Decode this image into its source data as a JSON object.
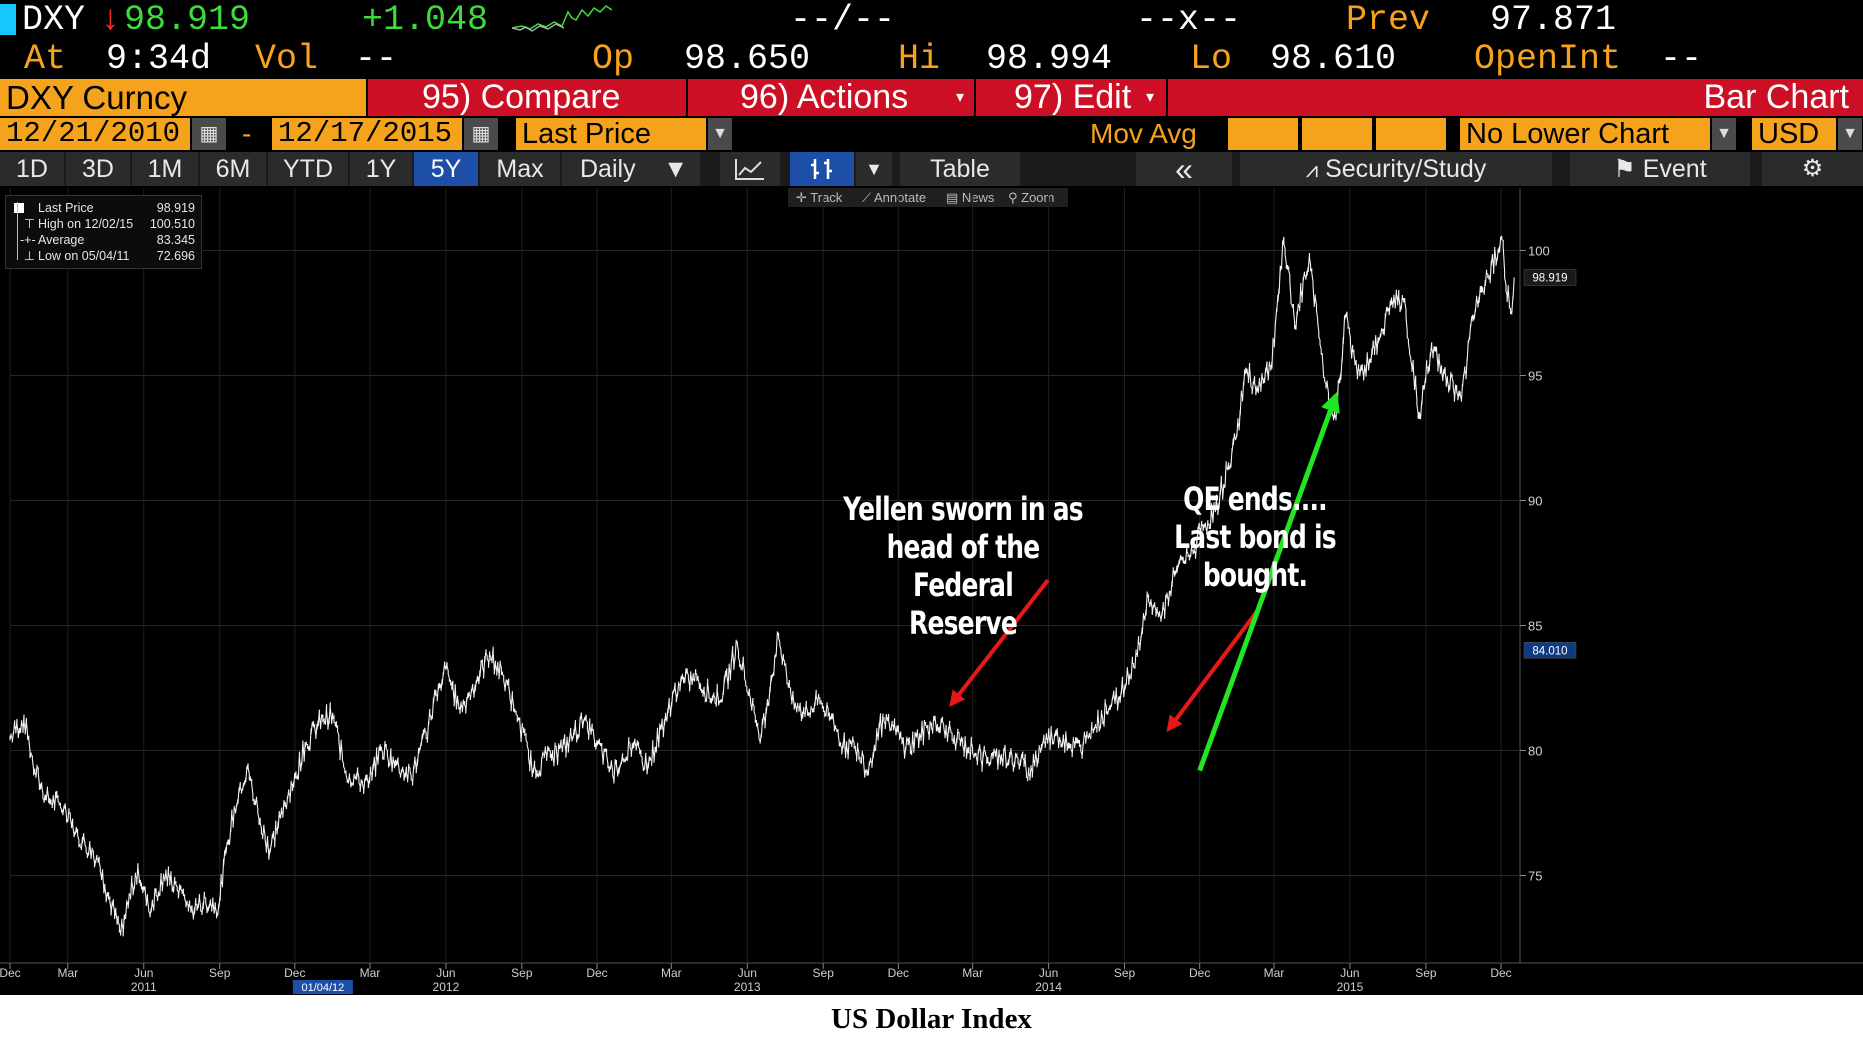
{
  "header": {
    "ticker": "DXY",
    "last_price": "98.919",
    "change": "+1.048",
    "bid_ask": "--/--",
    "size": "--x--",
    "prev_label": "Prev",
    "prev_value": "97.871",
    "at_label": "At",
    "at_time": "9:34d",
    "vol_label": "Vol",
    "vol_value": "--",
    "op_label": "Op",
    "op_value": "98.650",
    "hi_label": "Hi",
    "hi_value": "98.994",
    "lo_label": "Lo",
    "lo_value": "98.610",
    "openint_label": "OpenInt",
    "openint_value": "--"
  },
  "menubar": {
    "security": "DXY Curncy",
    "compare": "95) Compare",
    "actions": "96) Actions",
    "edit": "97) Edit",
    "chart_type": "Bar Chart"
  },
  "controls": {
    "start_date": "12/21/2010",
    "end_date": "12/17/2015",
    "field": "Last Price",
    "mov_avg": "Mov Avg",
    "lower_chart": "No Lower Chart",
    "currency": "USD",
    "dash": "-"
  },
  "tabs": {
    "periods": [
      "1D",
      "3D",
      "1M",
      "6M",
      "YTD",
      "1Y",
      "5Y",
      "Max"
    ],
    "active": "5Y",
    "frequency": "Daily",
    "table": "Table",
    "collapse": "«",
    "security_study": "Security/Study",
    "event": "Event"
  },
  "tools": {
    "track": "Track",
    "annotate": "Annotate",
    "news": "News",
    "zoom": "Zoom"
  },
  "legend": {
    "last_label": "Last Price",
    "last_value": "98.919",
    "high_label": "High on 12/02/15",
    "high_value": "100.510",
    "avg_label": "Average",
    "avg_value": "83.345",
    "low_label": "Low on 05/04/11",
    "low_value": "72.696"
  },
  "annotations": {
    "yellen": [
      "Yellen sworn in as",
      "head of the Federal",
      "Reserve"
    ],
    "qe": [
      "QE ends....",
      "Last bond is",
      "bought."
    ]
  },
  "caption": "US Dollar Index",
  "colors": {
    "background": "#000000",
    "line": "#ffffff",
    "orange": "#f5a31c",
    "menu_red": "#cc0f24",
    "up_green": "#3ddc3d",
    "down_red": "#ff2b2b",
    "arrow_red": "#e81818",
    "arrow_green": "#22e622",
    "tag_blue": "#1d4fa8"
  },
  "chart_data": {
    "type": "line",
    "title": "US Dollar Index",
    "xlabel": "",
    "ylabel": "",
    "ylim": [
      71.5,
      102.5
    ],
    "y_ticks": [
      75,
      80,
      85,
      90,
      95,
      100
    ],
    "x_ticks": [
      {
        "label": "Dec",
        "year": "",
        "date": "2010-12-21"
      },
      {
        "label": "Mar",
        "year": "",
        "date": "2011-03-01"
      },
      {
        "label": "Jun",
        "year": "2011",
        "date": "2011-06-01"
      },
      {
        "label": "Sep",
        "year": "",
        "date": "2011-09-01"
      },
      {
        "label": "Dec",
        "year": "",
        "date": "2011-12-01"
      },
      {
        "label": "Mar",
        "year": "",
        "date": "2012-03-01"
      },
      {
        "label": "Jun",
        "year": "2012",
        "date": "2012-06-01"
      },
      {
        "label": "Sep",
        "year": "",
        "date": "2012-09-01"
      },
      {
        "label": "Dec",
        "year": "",
        "date": "2012-12-01"
      },
      {
        "label": "Mar",
        "year": "",
        "date": "2013-03-01"
      },
      {
        "label": "Jun",
        "year": "2013",
        "date": "2013-06-01"
      },
      {
        "label": "Sep",
        "year": "",
        "date": "2013-09-01"
      },
      {
        "label": "Dec",
        "year": "",
        "date": "2013-12-01"
      },
      {
        "label": "Mar",
        "year": "",
        "date": "2014-03-01"
      },
      {
        "label": "Jun",
        "year": "2014",
        "date": "2014-06-01"
      },
      {
        "label": "Sep",
        "year": "",
        "date": "2014-09-01"
      },
      {
        "label": "Dec",
        "year": "",
        "date": "2014-12-01"
      },
      {
        "label": "Mar",
        "year": "",
        "date": "2015-03-01"
      },
      {
        "label": "Jun",
        "year": "2015",
        "date": "2015-06-01"
      },
      {
        "label": "Sep",
        "year": "",
        "date": "2015-09-01"
      },
      {
        "label": "Dec",
        "year": "",
        "date": "2015-12-01"
      }
    ],
    "date_tag": "01/04/12",
    "date_tag_date": "2012-01-04",
    "price_tags": [
      {
        "label": "98.919",
        "value": 98.919
      },
      {
        "label": "84.010",
        "value": 84.01
      }
    ],
    "annotation_arrows": [
      {
        "name": "yellen",
        "date": "2014-02-03",
        "value": 81.6
      },
      {
        "name": "qe-end",
        "date": "2014-10-29",
        "value": 80.6
      }
    ],
    "trend_arrow": {
      "from_date": "2014-12-01",
      "from_value": 79.2,
      "to_date": "2015-05-15",
      "to_value": 94.2
    },
    "series": [
      {
        "color": "#ffffff",
        "points": [
          [
            "2010-12-21",
            80.5
          ],
          [
            "2011-01-07",
            81.3
          ],
          [
            "2011-01-20",
            79.2
          ],
          [
            "2011-02-03",
            78.1
          ],
          [
            "2011-02-20",
            77.8
          ],
          [
            "2011-03-10",
            76.7
          ],
          [
            "2011-04-01",
            75.9
          ],
          [
            "2011-04-15",
            74.6
          ],
          [
            "2011-05-04",
            72.7
          ],
          [
            "2011-05-25",
            75.4
          ],
          [
            "2011-06-07",
            73.6
          ],
          [
            "2011-06-25",
            75.0
          ],
          [
            "2011-07-10",
            74.7
          ],
          [
            "2011-07-28",
            73.6
          ],
          [
            "2011-08-15",
            74.0
          ],
          [
            "2011-08-31",
            73.8
          ],
          [
            "2011-09-10",
            76.3
          ],
          [
            "2011-09-26",
            78.6
          ],
          [
            "2011-10-04",
            79.3
          ],
          [
            "2011-10-20",
            77.2
          ],
          [
            "2011-11-01",
            76.0
          ],
          [
            "2011-11-15",
            77.6
          ],
          [
            "2011-12-01",
            79.0
          ],
          [
            "2011-12-15",
            80.3
          ],
          [
            "2012-01-04",
            81.3
          ],
          [
            "2012-01-16",
            81.4
          ],
          [
            "2012-02-01",
            79.1
          ],
          [
            "2012-02-28",
            78.6
          ],
          [
            "2012-03-15",
            80.1
          ],
          [
            "2012-04-01",
            79.5
          ],
          [
            "2012-04-20",
            78.9
          ],
          [
            "2012-05-08",
            80.6
          ],
          [
            "2012-05-20",
            82.3
          ],
          [
            "2012-06-01",
            83.3
          ],
          [
            "2012-06-18",
            81.6
          ],
          [
            "2012-07-02",
            82.4
          ],
          [
            "2012-07-24",
            83.9
          ],
          [
            "2012-08-10",
            82.9
          ],
          [
            "2012-08-25",
            81.5
          ],
          [
            "2012-09-15",
            79.2
          ],
          [
            "2012-10-01",
            79.7
          ],
          [
            "2012-10-20",
            80.0
          ],
          [
            "2012-11-15",
            81.2
          ],
          [
            "2012-12-01",
            80.3
          ],
          [
            "2012-12-20",
            79.1
          ],
          [
            "2013-01-10",
            80.2
          ],
          [
            "2013-02-01",
            79.4
          ],
          [
            "2013-02-25",
            81.6
          ],
          [
            "2013-03-10",
            82.7
          ],
          [
            "2013-04-01",
            82.9
          ],
          [
            "2013-04-20",
            82.1
          ],
          [
            "2013-05-03",
            82.3
          ],
          [
            "2013-05-20",
            84.3
          ],
          [
            "2013-06-05",
            82.0
          ],
          [
            "2013-06-18",
            80.6
          ],
          [
            "2013-07-09",
            84.6
          ],
          [
            "2013-07-25",
            81.9
          ],
          [
            "2013-08-10",
            81.4
          ],
          [
            "2013-08-28",
            82.0
          ],
          [
            "2013-09-10",
            81.3
          ],
          [
            "2013-09-25",
            80.2
          ],
          [
            "2013-10-10",
            80.1
          ],
          [
            "2013-10-24",
            79.1
          ],
          [
            "2013-11-08",
            81.0
          ],
          [
            "2013-11-25",
            80.9
          ],
          [
            "2013-12-10",
            80.1
          ],
          [
            "2013-12-27",
            80.6
          ],
          [
            "2014-01-10",
            81.0
          ],
          [
            "2014-01-28",
            80.9
          ],
          [
            "2014-02-14",
            80.3
          ],
          [
            "2014-03-01",
            80.0
          ],
          [
            "2014-03-18",
            79.6
          ],
          [
            "2014-04-05",
            79.8
          ],
          [
            "2014-04-25",
            79.6
          ],
          [
            "2014-05-08",
            79.2
          ],
          [
            "2014-05-25",
            80.3
          ],
          [
            "2014-06-10",
            80.7
          ],
          [
            "2014-06-25",
            80.2
          ],
          [
            "2014-07-10",
            80.1
          ],
          [
            "2014-07-28",
            81.0
          ],
          [
            "2014-08-10",
            81.6
          ],
          [
            "2014-08-28",
            82.3
          ],
          [
            "2014-09-12",
            83.4
          ],
          [
            "2014-09-30",
            86.1
          ],
          [
            "2014-10-15",
            85.2
          ],
          [
            "2014-11-05",
            87.4
          ],
          [
            "2014-11-20",
            87.8
          ],
          [
            "2014-12-05",
            88.9
          ],
          [
            "2014-12-20",
            89.6
          ],
          [
            "2015-01-05",
            91.4
          ],
          [
            "2015-01-15",
            92.6
          ],
          [
            "2015-01-26",
            95.2
          ],
          [
            "2015-02-10",
            94.4
          ],
          [
            "2015-02-25",
            95.3
          ],
          [
            "2015-03-13",
            100.4
          ],
          [
            "2015-03-26",
            97.0
          ],
          [
            "2015-04-13",
            99.8
          ],
          [
            "2015-04-30",
            95.0
          ],
          [
            "2015-05-15",
            93.3
          ],
          [
            "2015-05-27",
            97.4
          ],
          [
            "2015-06-10",
            94.9
          ],
          [
            "2015-06-25",
            95.6
          ],
          [
            "2015-07-08",
            96.6
          ],
          [
            "2015-07-20",
            97.9
          ],
          [
            "2015-08-05",
            98.0
          ],
          [
            "2015-08-24",
            93.4
          ],
          [
            "2015-09-08",
            96.2
          ],
          [
            "2015-09-20",
            95.3
          ],
          [
            "2015-10-14",
            94.0
          ],
          [
            "2015-10-28",
            97.3
          ],
          [
            "2015-11-15",
            99.0
          ],
          [
            "2015-12-02",
            100.51
          ],
          [
            "2015-12-07",
            98.5
          ],
          [
            "2015-12-14",
            97.5
          ],
          [
            "2015-12-17",
            98.919
          ]
        ]
      }
    ]
  }
}
